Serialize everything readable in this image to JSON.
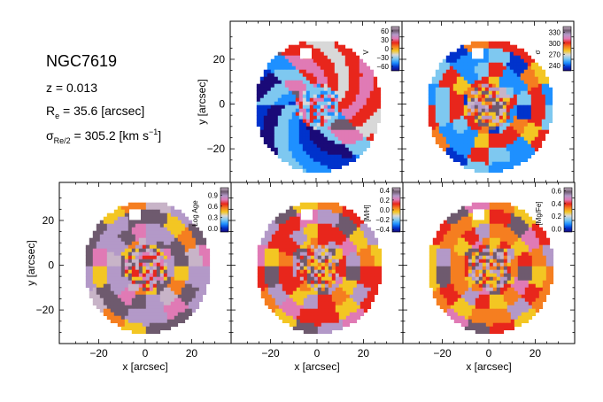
{
  "galaxy": {
    "name": "NGC7619",
    "redshift_label": "z = 0.013",
    "re_symbol": "R",
    "re_subscript": "e",
    "re_value": " = 35.6 [arcsec]",
    "sigma_symbol": "σ",
    "sigma_subscript": "Re/2",
    "sigma_value": " = 305.2 [km s",
    "sigma_superscript": "−1",
    "sigma_close": "]"
  },
  "chart_data": [
    {
      "type": "heatmap",
      "id": "velocity",
      "colorbar_label": "V",
      "colorbar_ticks": [
        "60",
        "30",
        "0",
        "−30",
        "−60"
      ],
      "colorbar_range": [
        -75,
        75
      ],
      "ylabel": "y [arcsec]",
      "xlabel": "",
      "yticks": [
        "20",
        "0",
        "−20"
      ],
      "xticks": [],
      "xlim": [
        -37,
        37
      ],
      "ylim": [
        -35,
        37
      ]
    },
    {
      "type": "heatmap",
      "id": "dispersion",
      "colorbar_label": "σ",
      "colorbar_ticks": [
        "330",
        "300",
        "270",
        "240"
      ],
      "colorbar_range": [
        225,
        345
      ],
      "ylabel": "",
      "xlabel": "",
      "yticks": [],
      "xticks": [],
      "xlim": [
        -37,
        37
      ],
      "ylim": [
        -35,
        37
      ]
    },
    {
      "type": "heatmap",
      "id": "log-age",
      "colorbar_label": "Log Age",
      "colorbar_ticks": [
        "0.9",
        "0.6",
        "0.3",
        "0.0"
      ],
      "colorbar_range": [
        -0.1,
        1.1
      ],
      "ylabel": "y [arcsec]",
      "xlabel": "x [arcsec]",
      "yticks": [
        "20",
        "0",
        "−20"
      ],
      "xticks": [
        "−20",
        "0",
        "20"
      ],
      "xlim": [
        -37,
        37
      ],
      "ylim": [
        -35,
        37
      ]
    },
    {
      "type": "heatmap",
      "id": "metallicity",
      "colorbar_label": "[M/H]",
      "colorbar_ticks": [
        "0.4",
        "0.2",
        "0.0",
        "−0.2",
        "−0.4"
      ],
      "colorbar_range": [
        -0.45,
        0.45
      ],
      "ylabel": "",
      "xlabel": "x [arcsec]",
      "yticks": [],
      "xticks": [
        "−20",
        "0",
        "20"
      ],
      "xlim": [
        -37,
        37
      ],
      "ylim": [
        -35,
        37
      ]
    },
    {
      "type": "heatmap",
      "id": "alpha",
      "colorbar_label": "[Mg/Fe]",
      "colorbar_ticks": [
        "0.6",
        "0.4",
        "0.2",
        "0.0"
      ],
      "colorbar_range": [
        -0.05,
        0.65
      ],
      "ylabel": "",
      "xlabel": "x [arcsec]",
      "yticks": [],
      "xticks": [
        "−20",
        "0",
        "20"
      ],
      "xlim": [
        -37,
        37
      ],
      "ylim": [
        -35,
        37
      ]
    }
  ],
  "colors": {
    "colormap": [
      "#000000",
      "#1a0a78",
      "#0033cc",
      "#1e90ff",
      "#7ec8f0",
      "#d8d8d8",
      "#f3c623",
      "#f57e20",
      "#e8261c",
      "#e07ab5",
      "#b399c8",
      "#6e5a6e",
      "#c8b4c8"
    ],
    "frame": "#000000"
  }
}
